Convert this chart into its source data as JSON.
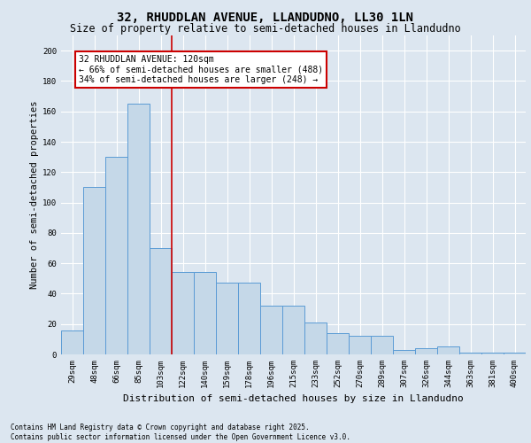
{
  "title": "32, RHUDDLAN AVENUE, LLANDUDNO, LL30 1LN",
  "subtitle": "Size of property relative to semi-detached houses in Llandudno",
  "xlabel": "Distribution of semi-detached houses by size in Llandudno",
  "ylabel": "Number of semi-detached properties",
  "categories": [
    "29sqm",
    "48sqm",
    "66sqm",
    "85sqm",
    "103sqm",
    "122sqm",
    "140sqm",
    "159sqm",
    "178sqm",
    "196sqm",
    "215sqm",
    "233sqm",
    "252sqm",
    "270sqm",
    "289sqm",
    "307sqm",
    "326sqm",
    "344sqm",
    "363sqm",
    "381sqm",
    "400sqm"
  ],
  "values": [
    16,
    110,
    130,
    165,
    70,
    54,
    54,
    47,
    47,
    32,
    32,
    21,
    14,
    12,
    12,
    3,
    4,
    5,
    1,
    1,
    1
  ],
  "bar_color": "#c5d8e8",
  "bar_edge_color": "#5b9bd5",
  "bar_edge_width": 0.7,
  "vline_x_index": 5,
  "vline_color": "#cc0000",
  "annotation_text": "32 RHUDDLAN AVENUE: 120sqm\n← 66% of semi-detached houses are smaller (488)\n34% of semi-detached houses are larger (248) →",
  "annotation_box_color": "#ffffff",
  "annotation_box_edge": "#cc0000",
  "background_color": "#dce6f0",
  "plot_background": "#dce6f0",
  "grid_color": "#ffffff",
  "ylim": [
    0,
    210
  ],
  "yticks": [
    0,
    20,
    40,
    60,
    80,
    100,
    120,
    140,
    160,
    180,
    200
  ],
  "footer_text": "Contains HM Land Registry data © Crown copyright and database right 2025.\nContains public sector information licensed under the Open Government Licence v3.0.",
  "title_fontsize": 10,
  "subtitle_fontsize": 8.5,
  "axis_label_fontsize": 7.5,
  "tick_fontsize": 6.5,
  "annotation_fontsize": 7,
  "footer_fontsize": 5.5
}
